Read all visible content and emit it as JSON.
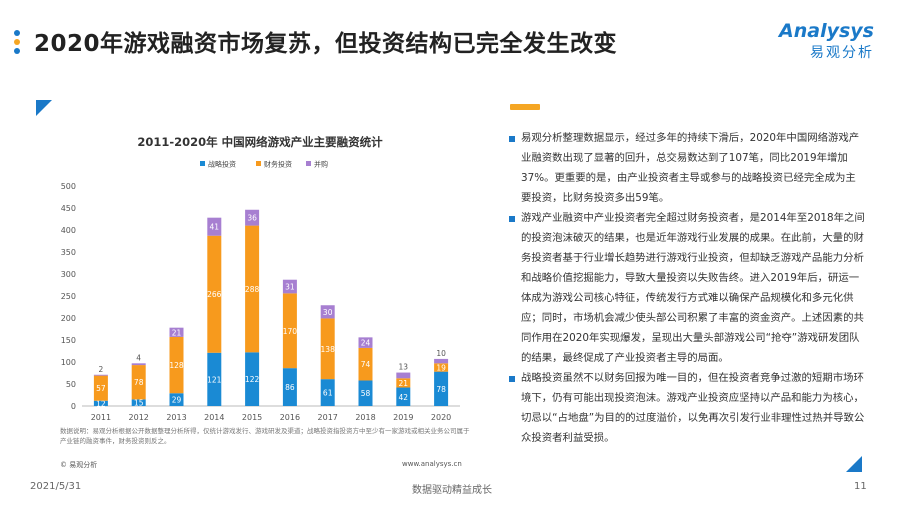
{
  "header": {
    "title": "2020年游戏融资市场复苏，但投资结构已完全发生改变",
    "logo_en": "Analysys",
    "logo_cn": "易观分析"
  },
  "colors": {
    "strategic": "#1a8ad4",
    "financial": "#f79a1d",
    "merger": "#a77fd1",
    "accent": "#1a79c8",
    "orange": "#f5a623"
  },
  "chart_data": {
    "type": "bar",
    "stacked": true,
    "title": "2011-2020年 中国网络游戏产业主要融资统计",
    "categories": [
      "2011",
      "2012",
      "2013",
      "2014",
      "2015",
      "2016",
      "2017",
      "2018",
      "2019",
      "2020"
    ],
    "series": [
      {
        "name": "战略投资",
        "values": [
          12,
          15,
          29,
          121,
          122,
          86,
          61,
          58,
          42,
          78
        ]
      },
      {
        "name": "财务投资",
        "values": [
          57,
          78,
          128,
          266,
          288,
          170,
          138,
          74,
          21,
          19
        ]
      },
      {
        "name": "并购",
        "values": [
          2,
          4,
          21,
          41,
          36,
          31,
          30,
          24,
          13,
          10
        ]
      }
    ],
    "label_texts": {
      "战略投资": [
        "12",
        "15",
        "29",
        "121",
        "122",
        "86",
        "61",
        "58",
        "42",
        "78"
      ],
      "财务投资": [
        "57",
        "78",
        "128",
        "266",
        "288",
        "170",
        "138",
        "74",
        "21",
        "19"
      ],
      "并购": [
        "2",
        "4",
        "21",
        "41",
        "36",
        "31",
        "30",
        "24",
        "13",
        "10"
      ]
    },
    "ylim": [
      0,
      500
    ],
    "yticks": [
      "0",
      "50",
      "100",
      "150",
      "200",
      "250",
      "300",
      "350",
      "400",
      "450",
      "500"
    ],
    "legend": "top",
    "grid": false
  },
  "chart_note": "数据说明：易观分析根据公开数据整理分析所得，仅统计游戏发行、游戏研发及渠道；战略投资指投资方中至少有一家游戏或相关业务公司属于产业链的融资事件，财务投资则反之。",
  "chart_source_left": "© 易观分析",
  "chart_source_right": "www.analysys.cn",
  "paragraphs": [
    "易观分析整理数据显示，经过多年的持续下滑后，2020年中国网络游戏产业融资数出现了显著的回升，总交易数达到了107笔，同比2019年增加37%。更重要的是，由产业投资者主导或参与的战略投资已经完全成为主要投资，比财务投资多出59笔。",
    "游戏产业融资中产业投资者完全超过财务投资者，是2014年至2018年之间的投资泡沫破灭的结果，也是近年游戏行业发展的成果。在此前，大量的财务投资者基于行业增长趋势进行游戏行业投资，但却缺乏游戏产品能力分析和战略价值挖掘能力，导致大量投资以失败告终。进入2019年后，研运一体成为游戏公司核心特征，传统发行方式难以确保产品规模化和多元化供应；同时，市场机会减少使头部公司积累了丰富的资金资产。上述因素的共同作用在2020年实现爆发，呈现出大量头部游戏公司“抢夺”游戏研发团队的结果，最终促成了产业投资者主导的局面。",
    "战略投资虽然不以财务回报为唯一目的，但在投资者竞争过激的短期市场环境下，仍有可能出现投资泡沫。游戏产业投资应坚持以产品和能力为核心，切忌以“占地盘”为目的的过度溢价，以免再次引发行业非理性过热并导致公众投资者利益受损。"
  ],
  "footer": {
    "date": "2021/5/31",
    "slogan": "数据驱动精益成长",
    "page": "11"
  }
}
